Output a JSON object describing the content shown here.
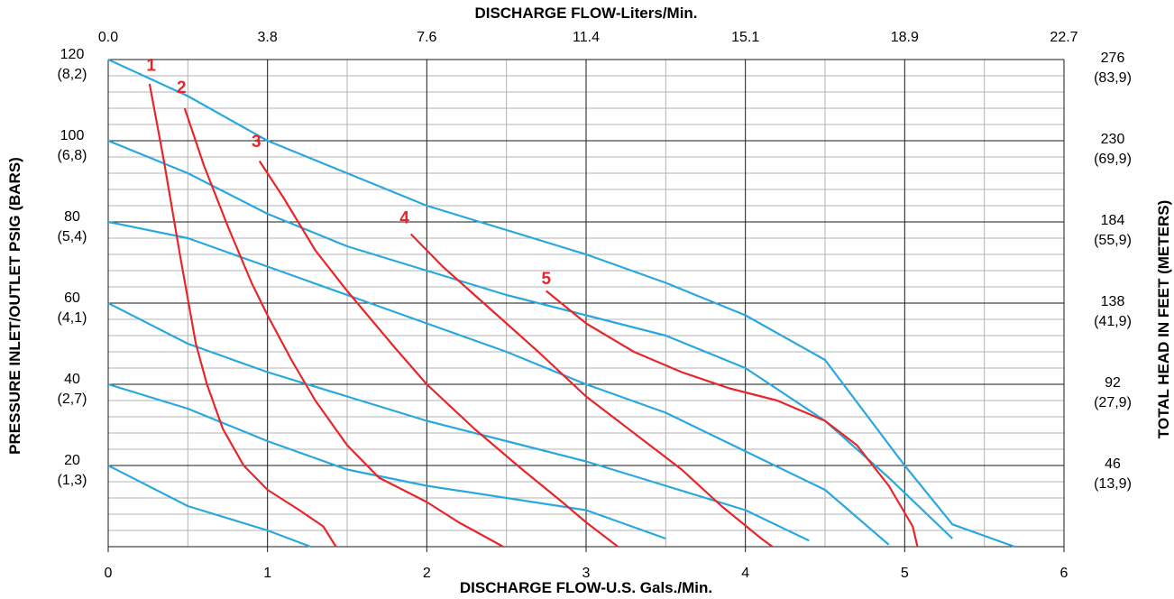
{
  "chart_data": {
    "type": "line",
    "top_title": "DISCHARGE FLOW-Liters/Min.",
    "xlabel": "DISCHARGE FLOW-U.S. Gals./Min.",
    "ylabel_left": "PRESSURE INLET/OUTLET PSIG (BARS)",
    "ylabel_right": "TOTAL HEAD IN FEET (METERS)",
    "xlim": [
      0,
      6
    ],
    "ylim": [
      0,
      120
    ],
    "grid": true,
    "x_ticks": [
      "0",
      "1",
      "2",
      "3",
      "4",
      "5",
      "6"
    ],
    "top_ticks": [
      "0.0",
      "3.8",
      "7.6",
      "11.4",
      "15.1",
      "18.9",
      "22.7"
    ],
    "left_ticks": [
      {
        "value": 120,
        "line1": "120",
        "line2": "(8,2)"
      },
      {
        "value": 100,
        "line1": "100",
        "line2": "(6,8)"
      },
      {
        "value": 80,
        "line1": "80",
        "line2": "(5,4)"
      },
      {
        "value": 60,
        "line1": "60",
        "line2": "(4,1)"
      },
      {
        "value": 40,
        "line1": "40",
        "line2": "(2,7)"
      },
      {
        "value": 20,
        "line1": "20",
        "line2": "(1,3)"
      }
    ],
    "right_ticks": [
      {
        "value": 120,
        "line1": "276",
        "line2": "(83,9)"
      },
      {
        "value": 100,
        "line1": "230",
        "line2": "(69,9)"
      },
      {
        "value": 80,
        "line1": "184",
        "line2": "(55,9)"
      },
      {
        "value": 60,
        "line1": "138",
        "line2": "(41,9)"
      },
      {
        "value": 40,
        "line1": "92",
        "line2": "(27,9)"
      },
      {
        "value": 20,
        "line1": "46",
        "line2": "(13,9)"
      }
    ],
    "colors": {
      "pressure": "#29a8df",
      "air": "#e8262a",
      "grid": "#1a1a1a",
      "minor_grid": "#b3b3b3"
    },
    "pressure_curves": [
      {
        "points": [
          [
            0,
            120
          ],
          [
            0.5,
            111
          ],
          [
            1,
            100
          ],
          [
            1.5,
            92
          ],
          [
            2,
            84
          ],
          [
            2.5,
            78
          ],
          [
            3,
            72
          ],
          [
            3.5,
            65
          ],
          [
            4,
            57
          ],
          [
            4.5,
            46
          ],
          [
            5,
            20
          ],
          [
            5.3,
            5.5
          ],
          [
            5.69,
            0
          ]
        ]
      },
      {
        "points": [
          [
            0,
            100
          ],
          [
            0.5,
            92
          ],
          [
            1,
            82
          ],
          [
            1.5,
            74
          ],
          [
            2,
            68
          ],
          [
            2.5,
            62
          ],
          [
            3,
            57
          ],
          [
            3.5,
            52
          ],
          [
            4,
            44
          ],
          [
            4.5,
            31
          ],
          [
            4.9,
            17
          ],
          [
            5.3,
            2
          ]
        ]
      },
      {
        "points": [
          [
            0,
            80
          ],
          [
            0.5,
            76
          ],
          [
            1,
            69
          ],
          [
            1.5,
            62
          ],
          [
            2,
            55
          ],
          [
            2.5,
            48
          ],
          [
            3,
            40
          ],
          [
            3.5,
            33
          ],
          [
            4,
            23.5
          ],
          [
            4.5,
            14
          ],
          [
            4.9,
            0.5
          ]
        ]
      },
      {
        "points": [
          [
            0,
            60
          ],
          [
            0.5,
            50
          ],
          [
            1,
            43
          ],
          [
            1.5,
            37
          ],
          [
            2,
            31
          ],
          [
            2.5,
            26
          ],
          [
            3,
            21
          ],
          [
            3.5,
            15
          ],
          [
            4,
            9
          ],
          [
            4.4,
            1.5
          ]
        ]
      },
      {
        "points": [
          [
            0,
            40
          ],
          [
            0.5,
            34
          ],
          [
            1,
            26
          ],
          [
            1.5,
            19
          ],
          [
            2,
            15
          ],
          [
            2.5,
            12
          ],
          [
            3,
            9
          ],
          [
            3.5,
            2
          ]
        ]
      },
      {
        "points": [
          [
            0,
            20
          ],
          [
            0.5,
            10
          ],
          [
            1,
            4
          ],
          [
            1.27,
            0
          ]
        ]
      }
    ],
    "air_curves": [
      {
        "label": "1",
        "label_pos": [
          0.27,
          117.2
        ],
        "points": [
          [
            0.26,
            114
          ],
          [
            0.35,
            95
          ],
          [
            0.45,
            72
          ],
          [
            0.55,
            50
          ],
          [
            0.62,
            40
          ],
          [
            0.72,
            29
          ],
          [
            0.85,
            20
          ],
          [
            1,
            14
          ],
          [
            1.2,
            9
          ],
          [
            1.35,
            5
          ],
          [
            1.43,
            0
          ]
        ]
      },
      {
        "label": "2",
        "label_pos": [
          0.46,
          111.8
        ],
        "points": [
          [
            0.48,
            108
          ],
          [
            0.6,
            94
          ],
          [
            0.75,
            79
          ],
          [
            0.9,
            65
          ],
          [
            1,
            57
          ],
          [
            1.15,
            46
          ],
          [
            1.3,
            36
          ],
          [
            1.5,
            25
          ],
          [
            1.7,
            17
          ],
          [
            2,
            11
          ],
          [
            2.2,
            6
          ],
          [
            2.48,
            0
          ]
        ]
      },
      {
        "label": "3",
        "label_pos": [
          0.93,
          98.5
        ],
        "points": [
          [
            0.95,
            95
          ],
          [
            1.1,
            86
          ],
          [
            1.3,
            73
          ],
          [
            1.5,
            63
          ],
          [
            1.8,
            49
          ],
          [
            2,
            40
          ],
          [
            2.3,
            29
          ],
          [
            2.6,
            19
          ],
          [
            2.85,
            11
          ],
          [
            3,
            6
          ],
          [
            3.2,
            0
          ]
        ]
      },
      {
        "label": "4",
        "label_pos": [
          1.86,
          79.7
        ],
        "points": [
          [
            1.9,
            77
          ],
          [
            2.1,
            69
          ],
          [
            2.3,
            62
          ],
          [
            2.5,
            55
          ],
          [
            2.7,
            48
          ],
          [
            3,
            37
          ],
          [
            3.3,
            28
          ],
          [
            3.6,
            19
          ],
          [
            3.85,
            10
          ],
          [
            4.1,
            2
          ],
          [
            4.17,
            0
          ]
        ]
      },
      {
        "label": "5",
        "label_pos": [
          2.75,
          64.7
        ],
        "points": [
          [
            2.75,
            63
          ],
          [
            3,
            55
          ],
          [
            3.3,
            48
          ],
          [
            3.6,
            43
          ],
          [
            3.9,
            39
          ],
          [
            4.2,
            36
          ],
          [
            4.5,
            31
          ],
          [
            4.7,
            25
          ],
          [
            4.9,
            15
          ],
          [
            5.05,
            5
          ],
          [
            5.08,
            0
          ]
        ]
      }
    ]
  }
}
